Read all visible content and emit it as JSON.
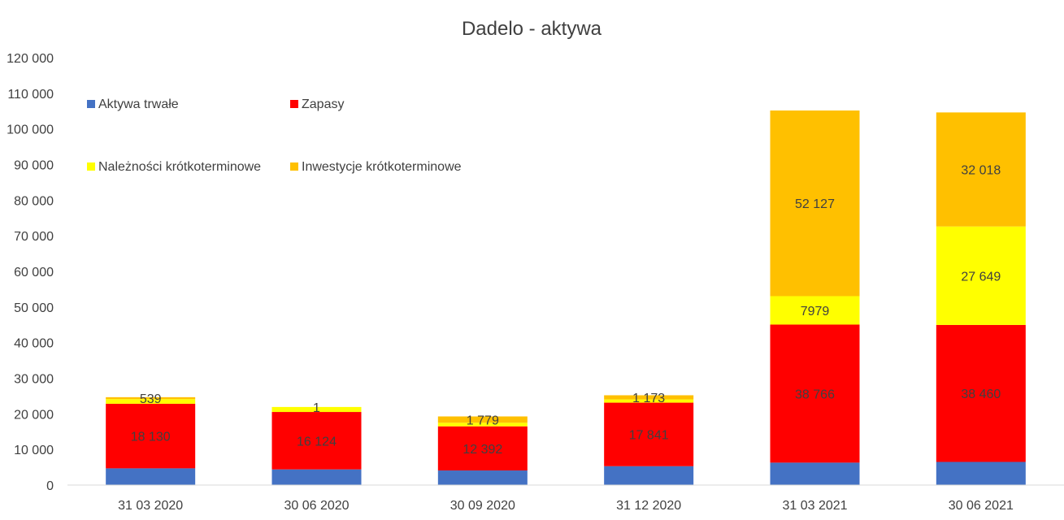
{
  "chart_data": {
    "type": "bar",
    "stacked": true,
    "title": "Dadelo - aktywa",
    "categories": [
      "31 03 2020",
      "30 06 2020",
      "30 09 2020",
      "31 12 2020",
      "31 03 2021",
      "30 06 2021"
    ],
    "ylim": [
      0,
      120000
    ],
    "yticks": [
      0,
      10000,
      20000,
      30000,
      40000,
      50000,
      60000,
      70000,
      80000,
      90000,
      100000,
      110000,
      120000
    ],
    "ytick_labels": [
      "0",
      "10 000",
      "20 000",
      "30 000",
      "40 000",
      "50 000",
      "60 000",
      "70 000",
      "80 000",
      "90 000",
      "100 000",
      "110 000",
      "120 000"
    ],
    "grid": false,
    "legend_position": "top-left",
    "series": [
      {
        "name": "Aktywa trwałe",
        "color": "#4472C4",
        "values": [
          4700,
          4400,
          4100,
          5300,
          6300,
          6500
        ],
        "labels": [
          "",
          "",
          "",
          "",
          "",
          ""
        ]
      },
      {
        "name": "Zapasy",
        "color": "#FF0000",
        "values": [
          18130,
          16124,
          12392,
          17841,
          38766,
          38460
        ],
        "labels": [
          "18 130",
          "16 124",
          "12 392",
          "17 841",
          "38 766",
          "38 460"
        ]
      },
      {
        "name": "Należności krótkoterminowe",
        "color": "#FFFF00",
        "values": [
          1300,
          1400,
          1000,
          900,
          7979,
          27649
        ],
        "labels": [
          "",
          "",
          "",
          "",
          "7979",
          "27 649"
        ]
      },
      {
        "name": "Inwestycje krótkoterminowe",
        "color": "#FFC000",
        "values": [
          539,
          1,
          1779,
          1173,
          52127,
          32018
        ],
        "labels": [
          "539",
          "1",
          "1 779",
          "1 173",
          "52 127",
          "32 018"
        ]
      }
    ]
  }
}
